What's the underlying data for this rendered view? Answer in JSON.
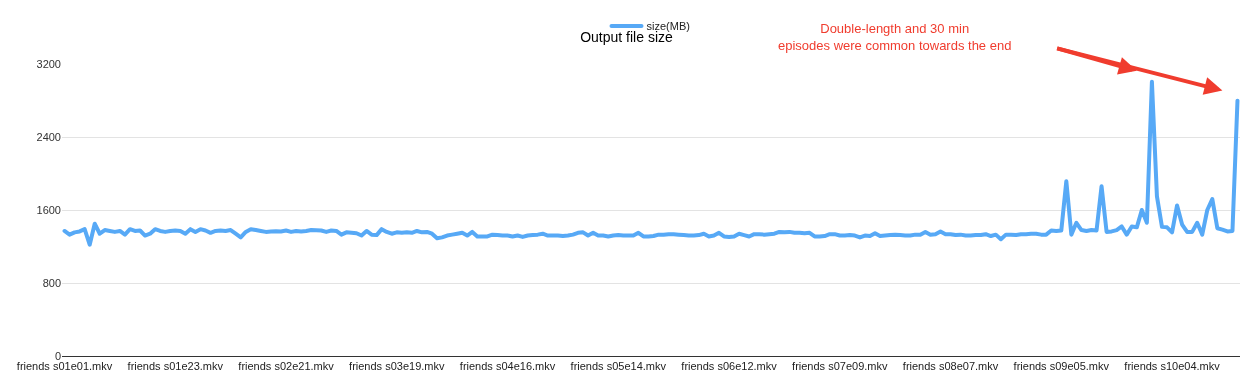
{
  "chart_data": {
    "type": "line",
    "title": "Output file size",
    "categories": [
      "friends s01e01.mkv",
      null,
      null,
      null,
      null,
      null,
      null,
      null,
      null,
      null,
      null,
      null,
      null,
      null,
      null,
      null,
      null,
      null,
      null,
      null,
      null,
      null,
      "friends s01e23.mkv",
      null,
      null,
      null,
      null,
      null,
      null,
      null,
      null,
      null,
      null,
      null,
      null,
      null,
      null,
      null,
      null,
      null,
      null,
      null,
      null,
      null,
      "friends s02e21.mkv",
      null,
      null,
      null,
      null,
      null,
      null,
      null,
      null,
      null,
      null,
      null,
      null,
      null,
      null,
      null,
      null,
      null,
      null,
      null,
      null,
      null,
      "friends s03e19.mkv",
      null,
      null,
      null,
      null,
      null,
      null,
      null,
      null,
      null,
      null,
      null,
      null,
      null,
      null,
      null,
      null,
      null,
      null,
      null,
      null,
      null,
      "friends s04e16.mkv",
      null,
      null,
      null,
      null,
      null,
      null,
      null,
      null,
      null,
      null,
      null,
      null,
      null,
      null,
      null,
      null,
      null,
      null,
      null,
      null,
      null,
      "friends s05e14.mkv",
      null,
      null,
      null,
      null,
      null,
      null,
      null,
      null,
      null,
      null,
      null,
      null,
      null,
      null,
      null,
      null,
      null,
      null,
      null,
      null,
      null,
      "friends s06e12.mkv",
      null,
      null,
      null,
      null,
      null,
      null,
      null,
      null,
      null,
      null,
      null,
      null,
      null,
      null,
      null,
      null,
      null,
      null,
      null,
      null,
      null,
      "friends s07e09.mkv",
      null,
      null,
      null,
      null,
      null,
      null,
      null,
      null,
      null,
      null,
      null,
      null,
      null,
      null,
      null,
      null,
      null,
      null,
      null,
      null,
      null,
      "friends s08e07.mkv",
      null,
      null,
      null,
      null,
      null,
      null,
      null,
      null,
      null,
      null,
      null,
      null,
      null,
      null,
      null,
      null,
      null,
      null,
      null,
      null,
      null,
      "friends s09e05.mkv",
      null,
      null,
      null,
      null,
      null,
      null,
      null,
      null,
      null,
      null,
      null,
      null,
      null,
      null,
      null,
      null,
      null,
      null,
      null,
      null,
      null,
      "friends s10e04.mkv",
      null,
      null,
      null,
      null,
      null,
      null,
      null,
      null,
      null,
      null,
      null,
      null,
      null
    ],
    "series": [
      {
        "name": "size(MB)",
        "color": "#57a9f6",
        "values": [
          1370,
          1330,
          1355,
          1365,
          1390,
          1220,
          1450,
          1340,
          1380,
          1370,
          1360,
          1370,
          1330,
          1390,
          1370,
          1375,
          1320,
          1340,
          1390,
          1370,
          1360,
          1370,
          1375,
          1370,
          1340,
          1390,
          1360,
          1390,
          1375,
          1350,
          1370,
          1375,
          1370,
          1380,
          1340,
          1300,
          1360,
          1390,
          1380,
          1370,
          1360,
          1365,
          1368,
          1365,
          1375,
          1360,
          1370,
          1365,
          1370,
          1380,
          1378,
          1375,
          1360,
          1375,
          1370,
          1330,
          1355,
          1350,
          1345,
          1320,
          1370,
          1330,
          1325,
          1390,
          1360,
          1340,
          1355,
          1350,
          1355,
          1350,
          1370,
          1355,
          1360,
          1340,
          1290,
          1300,
          1320,
          1330,
          1340,
          1350,
          1320,
          1360,
          1310,
          1310,
          1310,
          1330,
          1325,
          1320,
          1320,
          1310,
          1320,
          1305,
          1320,
          1325,
          1330,
          1340,
          1320,
          1320,
          1320,
          1315,
          1320,
          1330,
          1350,
          1355,
          1320,
          1350,
          1320,
          1320,
          1310,
          1320,
          1325,
          1320,
          1320,
          1320,
          1350,
          1310,
          1310,
          1315,
          1330,
          1330,
          1335,
          1335,
          1330,
          1325,
          1320,
          1320,
          1325,
          1340,
          1310,
          1320,
          1350,
          1310,
          1305,
          1310,
          1340,
          1325,
          1310,
          1335,
          1335,
          1330,
          1335,
          1340,
          1360,
          1355,
          1360,
          1350,
          1350,
          1345,
          1350,
          1310,
          1310,
          1315,
          1335,
          1335,
          1320,
          1320,
          1325,
          1320,
          1300,
          1320,
          1315,
          1345,
          1315,
          1320,
          1325,
          1330,
          1325,
          1320,
          1320,
          1330,
          1330,
          1360,
          1330,
          1335,
          1365,
          1335,
          1335,
          1325,
          1330,
          1320,
          1320,
          1325,
          1325,
          1335,
          1315,
          1330,
          1280,
          1330,
          1330,
          1325,
          1335,
          1335,
          1340,
          1340,
          1330,
          1330,
          1375,
          1370,
          1375,
          1915,
          1330,
          1460,
          1380,
          1370,
          1380,
          1375,
          1860,
          1360,
          1365,
          1380,
          1420,
          1330,
          1420,
          1410,
          1600,
          1460,
          3006,
          1750,
          1415,
          1410,
          1355,
          1650,
          1440,
          1360,
          1360,
          1460,
          1330,
          1600,
          1720,
          1400,
          1385,
          1365,
          1370,
          2798
        ]
      }
    ],
    "ylim": [
      0,
      3200
    ],
    "yticks": [
      0,
      800,
      1600,
      2400,
      3200
    ],
    "grid": "y",
    "legend": "top",
    "marker": "none",
    "line_style": "solid",
    "annotations": [
      "Double-length and 30 min\nepisodes were common towards the end"
    ]
  }
}
